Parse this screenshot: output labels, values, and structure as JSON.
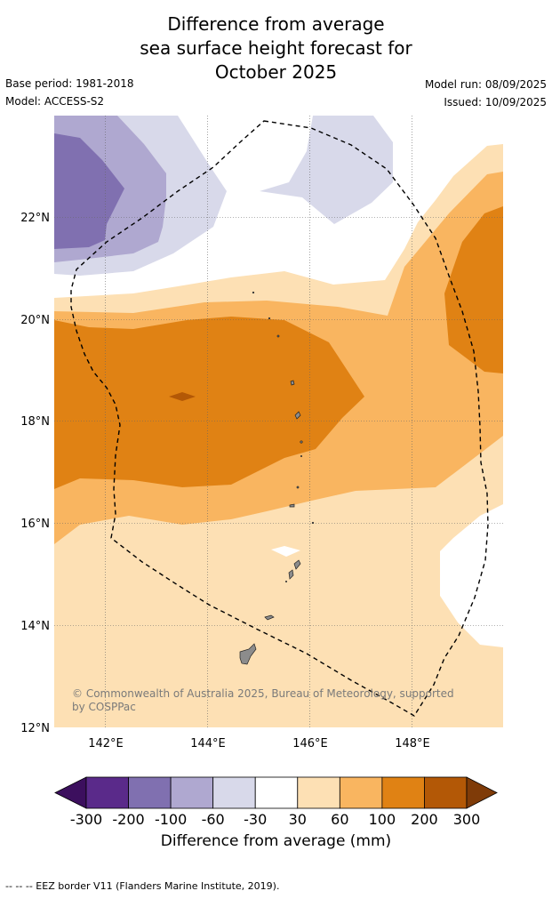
{
  "title": {
    "line1": "Difference from average",
    "line2": "sea surface height forecast for",
    "line3": "October 2025"
  },
  "meta": {
    "base_period": "Base period: 1981-2018",
    "model": "Model: ACCESS-S2",
    "model_run": "Model run: 08/09/2025",
    "issued": "Issued: 10/09/2025"
  },
  "map": {
    "lat_labels": [
      "22°N",
      "20°N",
      "18°N",
      "16°N",
      "14°N",
      "12°N"
    ],
    "lon_labels": [
      "142°E",
      "144°E",
      "146°E",
      "148°E"
    ],
    "copyright_line1": "© Commonwealth of Australia 2025, Bureau of Meteorology, supported",
    "copyright_line2": "by COSPPac",
    "land_color": "#8c8c8c"
  },
  "colorbar": {
    "ticks": [
      "-300",
      "-200",
      "-100",
      "-60",
      "-30",
      "30",
      "60",
      "100",
      "200",
      "300"
    ],
    "colors": [
      "#3c0f5e",
      "#5a2a8a",
      "#8070b0",
      "#afa8d0",
      "#d8d9ea",
      "#ffffff",
      "#fde0b4",
      "#f9b560",
      "#e08214",
      "#b35806",
      "#7f3b08"
    ],
    "title": "Difference from average (mm)"
  },
  "footer": "--  --  -- EEZ border V11 (Flanders Marine Institute, 2019)."
}
